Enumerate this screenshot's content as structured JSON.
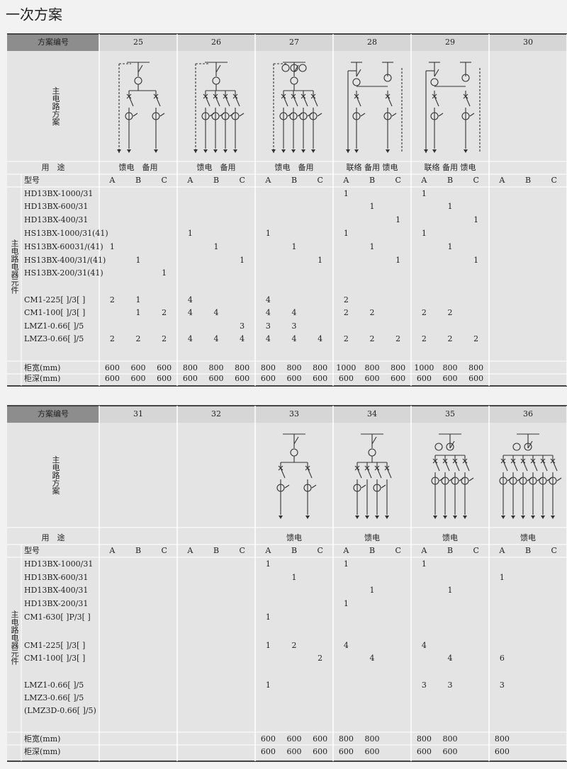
{
  "title": "一次方案",
  "tables": [
    {
      "header_label": "方案编号",
      "schemes": [
        25,
        26,
        27,
        28,
        29,
        30
      ],
      "circuit_label": "主电路方案",
      "usage_label": "用　途",
      "usage": [
        "馈电　备用",
        "馈电　备用",
        "馈电　备用",
        "联络 备用 馈电",
        "联络 备用 馈电",
        null
      ],
      "model_label": "型号",
      "subcols": [
        "A",
        "B",
        "C"
      ],
      "group_label": "主电路电器元件",
      "rows": [
        {
          "label": "HD13BX-1000/31",
          "values": [
            null,
            null,
            null,
            null,
            null,
            null,
            null,
            null,
            null,
            1,
            null,
            null,
            1,
            null,
            null,
            null,
            null,
            null
          ]
        },
        {
          "label": "HD13BX-600/31",
          "values": [
            null,
            null,
            null,
            null,
            null,
            null,
            null,
            null,
            null,
            null,
            1,
            null,
            null,
            1,
            null,
            null,
            null,
            null
          ]
        },
        {
          "label": "HD13BX-400/31",
          "values": [
            null,
            null,
            null,
            null,
            null,
            null,
            null,
            null,
            null,
            null,
            null,
            1,
            null,
            null,
            1,
            null,
            null,
            null
          ]
        },
        {
          "label": "HS13BX-1000/31(41)",
          "values": [
            null,
            null,
            null,
            1,
            null,
            null,
            1,
            null,
            null,
            1,
            null,
            null,
            1,
            null,
            null,
            null,
            null,
            null
          ]
        },
        {
          "label": "HS13BX-60031/(41)",
          "values": [
            1,
            null,
            null,
            null,
            1,
            null,
            null,
            1,
            null,
            null,
            1,
            null,
            null,
            1,
            null,
            null,
            null,
            null
          ]
        },
        {
          "label": "HS13BX-400/31/(41)",
          "values": [
            null,
            1,
            null,
            null,
            null,
            1,
            null,
            null,
            1,
            null,
            null,
            1,
            null,
            null,
            1,
            null,
            null,
            null
          ]
        },
        {
          "label": "HS13BX-200/31(41)",
          "values": [
            null,
            null,
            1,
            null,
            null,
            null,
            null,
            null,
            null,
            null,
            null,
            null,
            null,
            null,
            null,
            null,
            null,
            null
          ]
        },
        {
          "label": "CM1-225[ ]/3[ ]",
          "values": [
            2,
            1,
            null,
            4,
            null,
            null,
            4,
            null,
            null,
            2,
            null,
            null,
            null,
            null,
            null,
            null,
            null,
            null
          ]
        },
        {
          "label": "CM1-100[ ]/3[ ]",
          "values": [
            null,
            1,
            2,
            4,
            4,
            null,
            4,
            4,
            null,
            2,
            2,
            null,
            2,
            2,
            null,
            null,
            null,
            null
          ]
        },
        {
          "label": "LMZ1-0.66[ ]/5",
          "values": [
            null,
            null,
            null,
            null,
            null,
            3,
            3,
            3,
            null,
            null,
            null,
            null,
            null,
            null,
            null,
            null,
            null,
            null
          ]
        },
        {
          "label": "LMZ3-0.66[ ]/5",
          "values": [
            2,
            2,
            2,
            4,
            4,
            4,
            4,
            4,
            4,
            2,
            2,
            2,
            2,
            2,
            2,
            null,
            null,
            null
          ]
        }
      ],
      "width_label": "柜宽(mm)",
      "widths": [
        600,
        600,
        600,
        800,
        800,
        800,
        800,
        800,
        800,
        1000,
        800,
        800,
        1000,
        800,
        800,
        null,
        null,
        null
      ],
      "depth_label": "柜深(mm)",
      "depths": [
        600,
        600,
        600,
        600,
        600,
        600,
        600,
        600,
        600,
        600,
        600,
        600,
        600,
        600,
        600,
        null,
        null,
        null
      ]
    },
    {
      "header_label": "方案编号",
      "schemes": [
        31,
        32,
        33,
        34,
        35,
        36
      ],
      "circuit_label": "主电路方案",
      "usage_label": "用　途",
      "usage": [
        null,
        null,
        "馈电",
        "馈电",
        "馈电",
        "馈电"
      ],
      "model_label": "型号",
      "subcols": [
        "A",
        "B",
        "C"
      ],
      "group_label": "主电路电器元件",
      "rows": [
        {
          "label": "HD13BX-1000/31",
          "values": [
            null,
            null,
            null,
            null,
            null,
            null,
            1,
            null,
            null,
            1,
            null,
            null,
            1,
            null,
            null,
            null,
            null,
            null
          ]
        },
        {
          "label": "HD13BX-600/31",
          "values": [
            null,
            null,
            null,
            null,
            null,
            null,
            null,
            1,
            null,
            null,
            null,
            null,
            null,
            null,
            null,
            1,
            null,
            null
          ]
        },
        {
          "label": "HD13BX-400/31",
          "values": [
            null,
            null,
            null,
            null,
            null,
            null,
            null,
            null,
            null,
            null,
            1,
            null,
            null,
            1,
            null,
            null,
            null,
            null
          ]
        },
        {
          "label": "HD13BX-200/31",
          "values": [
            null,
            null,
            null,
            null,
            null,
            null,
            null,
            null,
            null,
            1,
            null,
            null,
            null,
            null,
            null,
            null,
            null,
            null
          ]
        },
        {
          "label": "CM1-630[ ]P/3[ ]",
          "values": [
            null,
            null,
            null,
            null,
            null,
            null,
            1,
            null,
            null,
            null,
            null,
            null,
            null,
            null,
            null,
            null,
            null,
            null
          ]
        },
        {
          "label": "CM1-225[ ]/3[ ]",
          "values": [
            null,
            null,
            null,
            null,
            null,
            null,
            1,
            2,
            null,
            4,
            null,
            null,
            4,
            null,
            null,
            null,
            null,
            null
          ]
        },
        {
          "label": "CM1-100[ ]/3[ ]",
          "values": [
            null,
            null,
            null,
            null,
            null,
            null,
            null,
            null,
            2,
            null,
            4,
            null,
            null,
            4,
            null,
            6,
            null,
            null
          ]
        },
        {
          "label": "LMZ1-0.66[ ]/5",
          "values": [
            null,
            null,
            null,
            null,
            null,
            null,
            1,
            null,
            null,
            null,
            null,
            null,
            3,
            3,
            null,
            3,
            null,
            null
          ]
        },
        {
          "label": "LMZ3-0.66[ ]/5",
          "values": [
            null,
            null,
            null,
            null,
            null,
            null,
            null,
            null,
            null,
            null,
            null,
            null,
            null,
            null,
            null,
            null,
            null,
            null
          ]
        },
        {
          "label": "(LMZ3D-0.66[ ]/5)",
          "values": [
            null,
            null,
            null,
            null,
            null,
            null,
            null,
            null,
            null,
            null,
            null,
            null,
            null,
            null,
            null,
            null,
            null,
            null
          ]
        }
      ],
      "width_label": "柜宽(mm)",
      "widths": [
        null,
        null,
        null,
        null,
        null,
        null,
        600,
        600,
        600,
        800,
        800,
        null,
        800,
        800,
        null,
        800,
        null,
        null
      ],
      "depth_label": "柜深(mm)",
      "depths": [
        null,
        null,
        null,
        null,
        null,
        null,
        600,
        600,
        600,
        600,
        600,
        null,
        600,
        600,
        null,
        600,
        null,
        null
      ]
    }
  ]
}
